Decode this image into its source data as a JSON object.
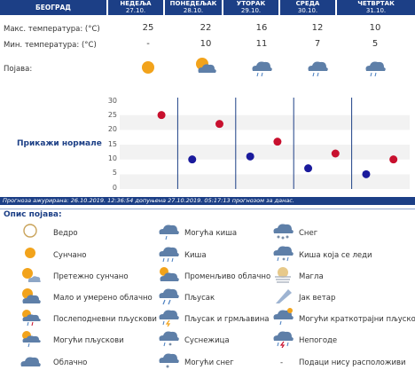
{
  "header": {
    "city": "БЕОГРАД",
    "days": [
      {
        "name": "НЕДЕЉА",
        "date": "27.10."
      },
      {
        "name": "ПОНЕДЕЉАК",
        "date": "28.10."
      },
      {
        "name": "УТОРАК",
        "date": "29.10."
      },
      {
        "name": "СРЕДА",
        "date": "30.10."
      },
      {
        "name": "ЧЕТВРТАК",
        "date": "31.10."
      }
    ]
  },
  "rows": {
    "max_label": "Макс. температура: (°C)",
    "min_label": "Мин. температура: (°C)",
    "phen_label": "Појава:",
    "max": [
      "25",
      "22",
      "16",
      "12",
      "10"
    ],
    "min": [
      "-",
      "10",
      "11",
      "7",
      "5"
    ],
    "icons": [
      "sun-icon",
      "partly-cloudy-icon",
      "cloud-rain-icon",
      "cloud-rain-icon",
      "cloud-rain-icon"
    ]
  },
  "show_normals": "Прикажи нормале",
  "chart_data": {
    "type": "scatter",
    "yticks": [
      "0",
      "5",
      "10",
      "15",
      "20",
      "25",
      "30"
    ],
    "ylim": [
      0,
      30
    ],
    "categories": [
      "27.10.",
      "28.10.",
      "29.10.",
      "30.10.",
      "31.10."
    ],
    "series": [
      {
        "color": "#c8102e",
        "values": [
          25,
          22,
          16,
          12,
          10
        ]
      },
      {
        "color": "#1a1a9c",
        "values": [
          null,
          10,
          11,
          7,
          5
        ]
      }
    ]
  },
  "forecast_note": "Прогноза ажурирана:  26.10.2019. 12:36:54 допуњена 27.10.2019. 05:17:13 прогнозом за данас.",
  "legend": {
    "title": "Опис појава:",
    "items": [
      {
        "label": "Ведро",
        "icon": "clear-night-icon"
      },
      {
        "label": "Сунчано",
        "icon": "sun-icon"
      },
      {
        "label": "Претежно сунчано",
        "icon": "mostly-sunny-icon"
      },
      {
        "label": "Мало и умерено облачно",
        "icon": "partly-cloudy-icon"
      },
      {
        "label": "Послеподневни пљускови",
        "icon": "afternoon-showers-icon"
      },
      {
        "label": "Могући пљускови",
        "icon": "possible-showers-icon"
      },
      {
        "label": "Облачно",
        "icon": "cloud-icon"
      },
      {
        "label": "Могућа киша",
        "icon": "possible-rain-icon"
      },
      {
        "label": "Киша",
        "icon": "rain-icon"
      },
      {
        "label": "Променљиво облачно",
        "icon": "variable-cloud-icon"
      },
      {
        "label": "Пљусак",
        "icon": "shower-icon"
      },
      {
        "label": "Пљусак и грмљавина",
        "icon": "thunder-shower-icon"
      },
      {
        "label": "Суснежица",
        "icon": "sleet-icon"
      },
      {
        "label": "Могући снег",
        "icon": "possible-snow-icon"
      },
      {
        "label": "Снег",
        "icon": "snow-icon"
      },
      {
        "label": "Киша која се леди",
        "icon": "freezing-rain-icon"
      },
      {
        "label": "Магла",
        "icon": "fog-icon"
      },
      {
        "label": "Јак ветар",
        "icon": "wind-icon"
      },
      {
        "label": "Могући краткотрајни пљускови",
        "icon": "brief-showers-icon"
      },
      {
        "label": "Непогоде",
        "icon": "storm-icon"
      },
      {
        "label": "Подаци нису расположиви",
        "icon": "dash-icon",
        "glyph": "-"
      }
    ]
  }
}
